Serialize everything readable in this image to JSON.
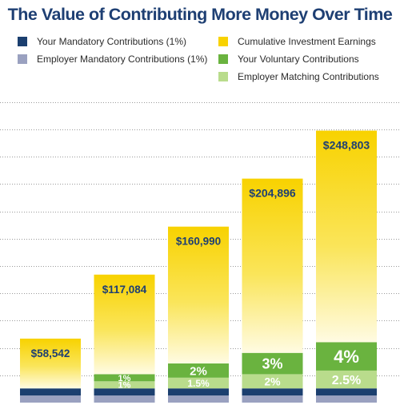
{
  "chart_data": {
    "type": "bar",
    "stacked": true,
    "title": "The Value of Contributing More Money Over Time",
    "legend_position": "top",
    "grid": true,
    "legend": [
      {
        "name": "Your Mandatory Contributions (1%)",
        "color": "#1b3f6f"
      },
      {
        "name": "Employer Mandatory Contributions (1%)",
        "color": "#9aa1c0"
      },
      {
        "name": "Cumulative Investment Earnings",
        "color": "#f8d200"
      },
      {
        "name": "Your Voluntary Contributions",
        "color": "#6ab33f"
      },
      {
        "name": "Employer Matching Contributions",
        "color": "#b9dc8c"
      }
    ],
    "bars": [
      {
        "total": 58542,
        "total_label": "$58,542",
        "segments": {
          "your_mandatory": 6500,
          "employer_mandatory": 6500,
          "voluntary": 0,
          "matching": 0,
          "earnings": 45542
        },
        "voluntary_label": "",
        "matching_label": ""
      },
      {
        "total": 117084,
        "total_label": "$117,084",
        "segments": {
          "your_mandatory": 6500,
          "employer_mandatory": 6500,
          "voluntary": 6500,
          "matching": 6500,
          "earnings": 91084
        },
        "voluntary_label": "1%",
        "matching_label": "1%"
      },
      {
        "total": 160990,
        "total_label": "$160,990",
        "segments": {
          "your_mandatory": 6500,
          "employer_mandatory": 6500,
          "voluntary": 13000,
          "matching": 9800,
          "earnings": 125190
        },
        "voluntary_label": "2%",
        "matching_label": "1.5%"
      },
      {
        "total": 204896,
        "total_label": "$204,896",
        "segments": {
          "your_mandatory": 6500,
          "employer_mandatory": 6500,
          "voluntary": 19500,
          "matching": 13000,
          "earnings": 159396
        },
        "voluntary_label": "3%",
        "matching_label": "2%"
      },
      {
        "total": 248803,
        "total_label": "$248,803",
        "segments": {
          "your_mandatory": 6500,
          "employer_mandatory": 6500,
          "voluntary": 26000,
          "matching": 16300,
          "earnings": 193503
        },
        "voluntary_label": "4%",
        "matching_label": "2.5%"
      }
    ],
    "ylim": [
      0,
      285000
    ],
    "gridline_step": 25000
  }
}
